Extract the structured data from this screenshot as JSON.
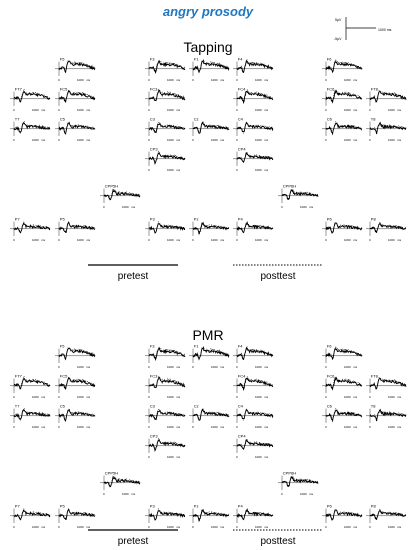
{
  "title": "angry prosody",
  "title_color": "#1f77c2",
  "scale_bar": {
    "pos_label": "5μV",
    "neg_label": "-5μV",
    "time_label": "1000 ms"
  },
  "conditions": [
    {
      "name": "Tapping",
      "solid_label": "pretest",
      "dotted_label": "posttest"
    },
    {
      "name": "PMR",
      "solid_label": "pretest",
      "dotted_label": "posttest"
    }
  ],
  "axis_ticks": [
    "0",
    "1000",
    "ms"
  ],
  "chart_data": {
    "type": "line",
    "description_units": "time (ms) vs amplitude (μV)",
    "electrodes": [
      "F5",
      "F3",
      "F1",
      "F4",
      "F6",
      "FT7",
      "FC5",
      "FC3",
      "FC4",
      "FC6",
      "FT8",
      "T7",
      "C5",
      "C3",
      "Cz",
      "C4",
      "C6",
      "T8",
      "CP3",
      "CP4",
      "CPP5H",
      "CPP6H",
      "P7",
      "P5",
      "P3",
      "Pz",
      "P4",
      "P6",
      "P8"
    ],
    "series": [
      {
        "name": "pretest",
        "style": "solid"
      },
      {
        "name": "posttest",
        "style": "dotted"
      }
    ],
    "xlim": [
      -200,
      2000
    ]
  }
}
